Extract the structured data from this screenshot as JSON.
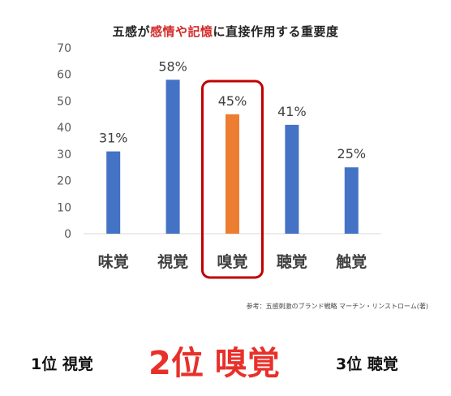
{
  "title": {
    "part1": "五感が",
    "highlight": "感情や記憶",
    "part2": "に直接作用する重要度"
  },
  "chart_data": {
    "type": "bar",
    "categories": [
      "味覚",
      "視覚",
      "嗅覚",
      "聴覚",
      "触覚"
    ],
    "values": [
      31,
      58,
      45,
      41,
      25
    ],
    "data_labels": [
      "31%",
      "58%",
      "45%",
      "41%",
      "25%"
    ],
    "ylim": [
      0,
      70
    ],
    "yticks": [
      0,
      10,
      20,
      30,
      40,
      50,
      60,
      70
    ],
    "grid": false,
    "bar_color": "#4472c4",
    "highlight_index": 2,
    "highlight_color": "#ed7d31",
    "highlight_box_color": "#c00000"
  },
  "source": "参考：五感刺激のブランド戦略 マーチン・リンストローム(著)",
  "ranking": {
    "first": "1位 視覚",
    "second": "2位 嗅覚",
    "third": "3位 聴覚"
  }
}
